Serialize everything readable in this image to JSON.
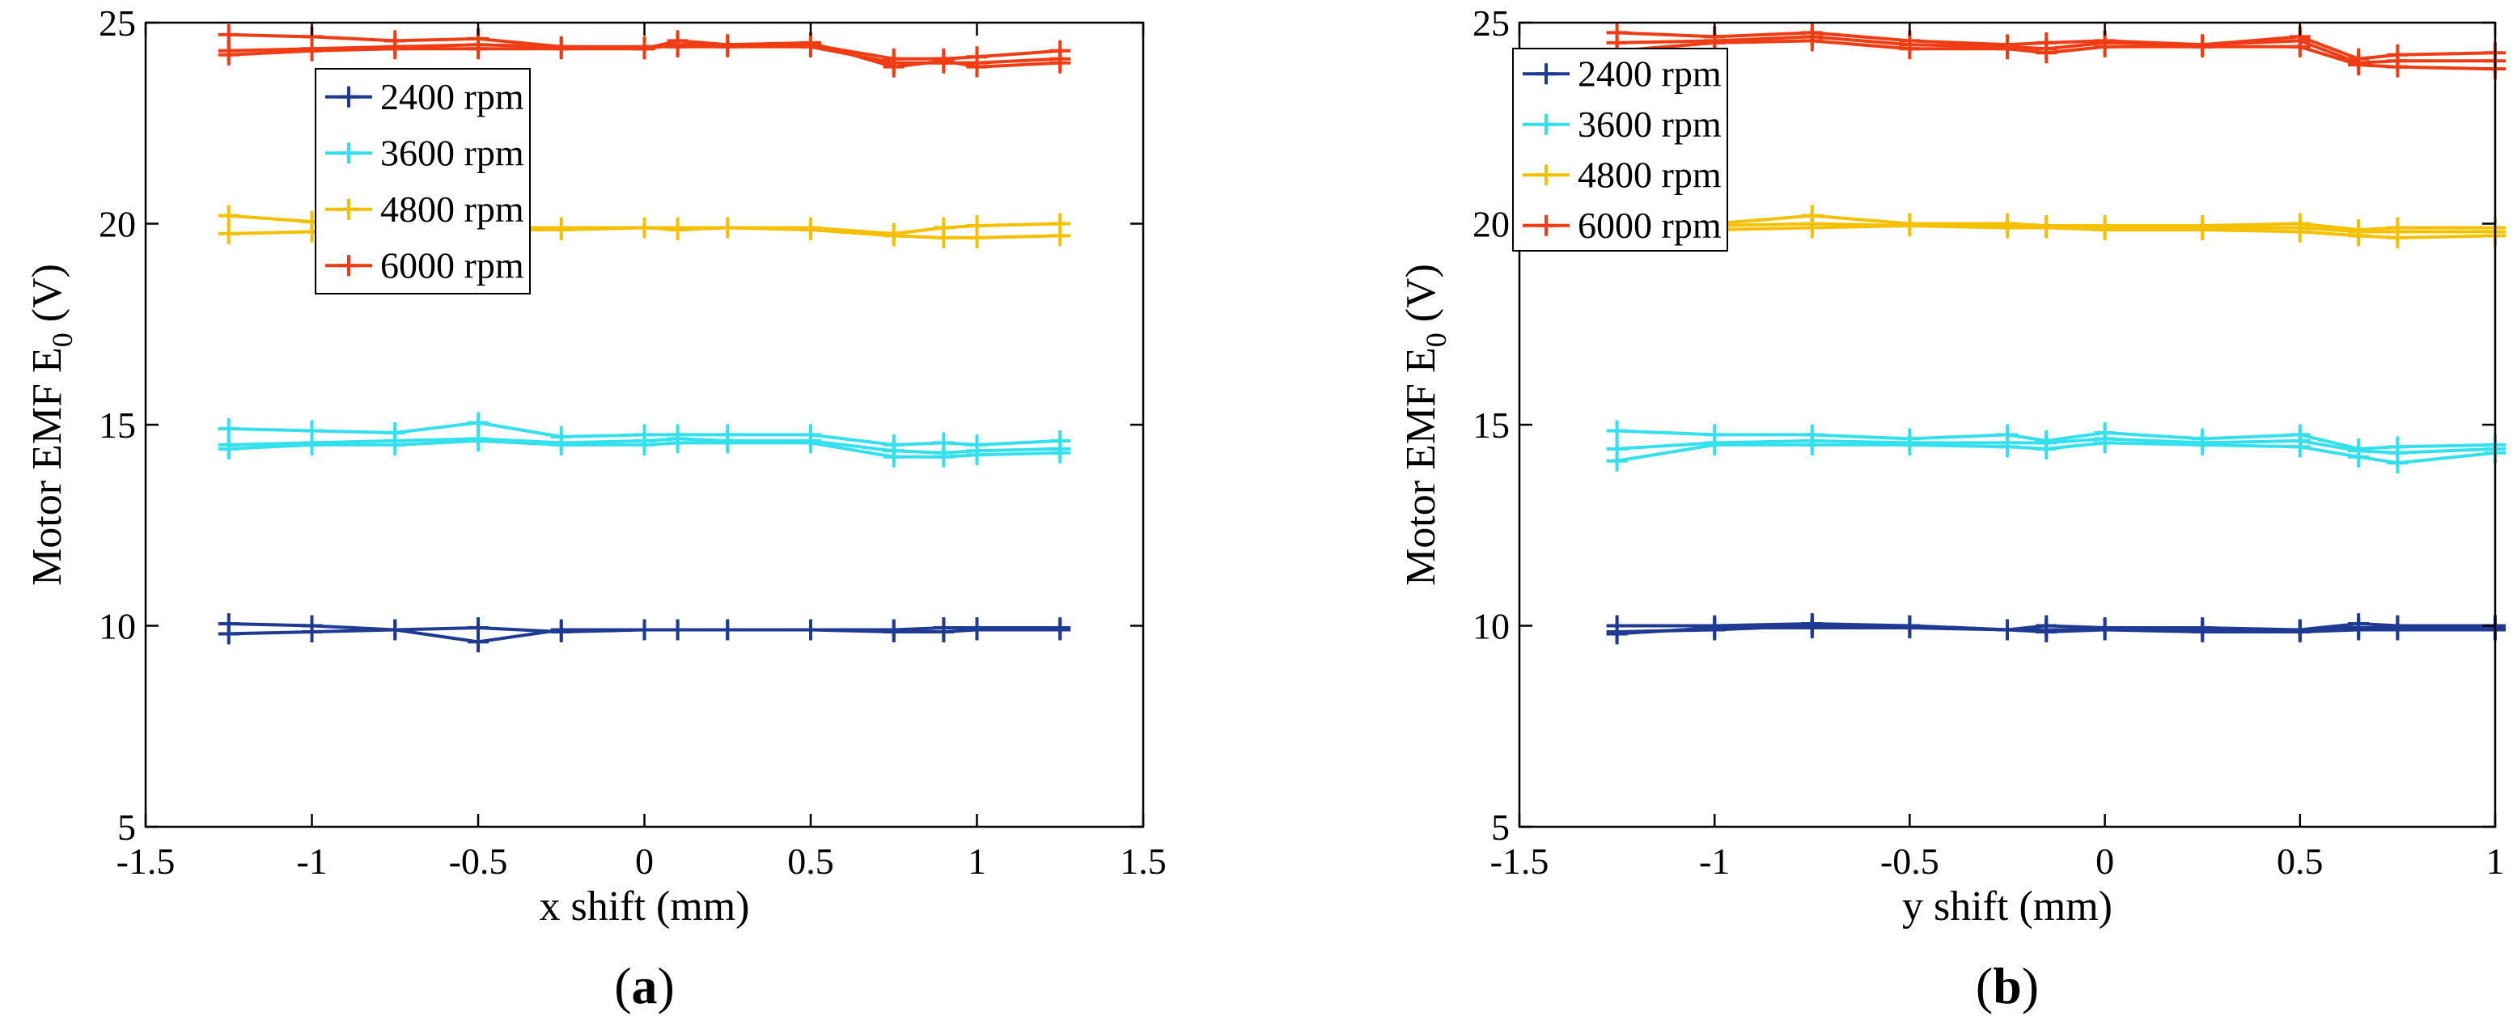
{
  "chart_data": [
    {
      "type": "line",
      "panel_label": "(a)",
      "panel_letter": "a",
      "xlabel": "x shift (mm)",
      "ylabel": "Motor EMF E",
      "ylabel_subscript": "0",
      "ylabel_suffix": " (V)",
      "xlim": [
        -1.5,
        1.5
      ],
      "ylim": [
        5,
        25
      ],
      "xticks": [
        -1.5,
        -1,
        -0.5,
        0,
        0.5,
        1,
        1.5
      ],
      "xtick_labels": [
        "-1.5",
        "-1",
        "-0.5",
        "0",
        "0.5",
        "1",
        "1.5"
      ],
      "yticks": [
        5,
        10,
        15,
        20,
        25
      ],
      "ytick_labels": [
        "5",
        "10",
        "15",
        "20",
        "25"
      ],
      "legend_position": "top-left-inside",
      "x": [
        -1.25,
        -1,
        -0.75,
        -0.5,
        -0.25,
        0,
        0.1,
        0.25,
        0.5,
        0.75,
        0.9,
        1,
        1.25
      ],
      "series": [
        {
          "name": "2400 rpm",
          "color": "#1f3a93",
          "traces": [
            [
              10.05,
              10.0,
              9.9,
              9.6,
              9.9,
              9.9,
              9.9,
              9.9,
              9.9,
              9.9,
              9.95,
              9.95,
              9.95
            ],
            [
              9.8,
              9.85,
              9.9,
              9.95,
              9.85,
              9.9,
              9.9,
              9.9,
              9.9,
              9.85,
              9.85,
              9.9,
              9.9
            ]
          ]
        },
        {
          "name": "3600 rpm",
          "color": "#33e0ee",
          "traces": [
            [
              14.9,
              14.85,
              14.8,
              15.05,
              14.7,
              14.75,
              14.75,
              14.75,
              14.75,
              14.5,
              14.55,
              14.5,
              14.6
            ],
            [
              14.5,
              14.55,
              14.6,
              14.65,
              14.55,
              14.6,
              14.65,
              14.6,
              14.6,
              14.35,
              14.3,
              14.35,
              14.4
            ],
            [
              14.4,
              14.5,
              14.5,
              14.6,
              14.5,
              14.5,
              14.55,
              14.55,
              14.55,
              14.2,
              14.2,
              14.25,
              14.3
            ]
          ]
        },
        {
          "name": "4800 rpm",
          "color": "#f5c000",
          "traces": [
            [
              20.2,
              20.05,
              19.95,
              19.9,
              19.9,
              19.9,
              19.9,
              19.9,
              19.9,
              19.75,
              19.9,
              19.95,
              20.0
            ],
            [
              19.75,
              19.8,
              19.85,
              19.85,
              19.85,
              19.9,
              19.85,
              19.9,
              19.85,
              19.7,
              19.65,
              19.65,
              19.7
            ]
          ]
        },
        {
          "name": "6000 rpm",
          "color": "#f03c14",
          "traces": [
            [
              24.7,
              24.65,
              24.55,
              24.6,
              24.4,
              24.35,
              24.55,
              24.45,
              24.45,
              24.1,
              24.1,
              24.15,
              24.3
            ],
            [
              24.3,
              24.35,
              24.4,
              24.45,
              24.4,
              24.4,
              24.4,
              24.4,
              24.4,
              24.0,
              24.0,
              24.0,
              24.1
            ],
            [
              24.2,
              24.3,
              24.35,
              24.35,
              24.35,
              24.35,
              24.45,
              24.45,
              24.5,
              23.9,
              24.05,
              23.9,
              24.0
            ]
          ]
        }
      ]
    },
    {
      "type": "line",
      "panel_label": "(b)",
      "panel_letter": "b",
      "xlabel": "y shift (mm)",
      "ylabel": "Motor EMF E",
      "ylabel_subscript": "0",
      "ylabel_suffix": " (V)",
      "xlim": [
        -1.5,
        1
      ],
      "ylim": [
        5,
        25
      ],
      "xticks": [
        -1.5,
        -1,
        -0.5,
        0,
        0.5,
        1
      ],
      "xtick_labels": [
        "-1.5",
        "-1",
        "-0.5",
        "0",
        "0.5",
        "1"
      ],
      "yticks": [
        5,
        10,
        15,
        20,
        25
      ],
      "ytick_labels": [
        "5",
        "10",
        "15",
        "20",
        "25"
      ],
      "legend_position": "top-left-inside",
      "x": [
        -1.25,
        -1,
        -0.75,
        -0.5,
        -0.25,
        -0.15,
        0,
        0.25,
        0.5,
        0.65,
        0.75,
        1
      ],
      "series": [
        {
          "name": "2400 rpm",
          "color": "#1f3a93",
          "traces": [
            [
              10.0,
              10.0,
              10.05,
              10.0,
              9.9,
              10.0,
              9.95,
              9.95,
              9.9,
              10.05,
              10.0,
              10.0
            ],
            [
              9.85,
              9.9,
              10.0,
              10.0,
              9.9,
              9.85,
              9.9,
              9.9,
              9.9,
              9.95,
              9.95,
              9.95
            ],
            [
              9.8,
              9.95,
              9.95,
              9.95,
              9.9,
              9.9,
              9.9,
              9.85,
              9.85,
              9.9,
              9.9,
              9.9
            ]
          ]
        },
        {
          "name": "3600 rpm",
          "color": "#33e0ee",
          "traces": [
            [
              14.85,
              14.75,
              14.75,
              14.65,
              14.75,
              14.6,
              14.8,
              14.65,
              14.75,
              14.4,
              14.45,
              14.5
            ],
            [
              14.4,
              14.55,
              14.6,
              14.55,
              14.55,
              14.55,
              14.65,
              14.55,
              14.6,
              14.35,
              14.3,
              14.4
            ],
            [
              14.1,
              14.5,
              14.5,
              14.5,
              14.45,
              14.4,
              14.55,
              14.5,
              14.45,
              14.2,
              14.05,
              14.3
            ]
          ]
        },
        {
          "name": "4800 rpm",
          "color": "#f5c000",
          "traces": [
            [
              20.0,
              20.0,
              20.2,
              20.0,
              20.0,
              19.95,
              19.95,
              19.95,
              20.0,
              19.85,
              19.9,
              19.9
            ],
            [
              19.85,
              19.95,
              20.0,
              19.95,
              19.95,
              19.9,
              19.9,
              19.9,
              19.9,
              19.8,
              19.8,
              19.8
            ],
            [
              19.8,
              19.85,
              19.9,
              19.95,
              19.9,
              19.9,
              19.85,
              19.85,
              19.8,
              19.7,
              19.65,
              19.7
            ]
          ]
        },
        {
          "name": "6000 rpm",
          "color": "#f03c14",
          "traces": [
            [
              24.75,
              24.65,
              24.75,
              24.55,
              24.45,
              24.5,
              24.55,
              24.45,
              24.65,
              24.1,
              24.2,
              24.25
            ],
            [
              24.5,
              24.55,
              24.65,
              24.45,
              24.4,
              24.35,
              24.5,
              24.45,
              24.55,
              24.0,
              24.05,
              24.05
            ],
            [
              24.3,
              24.5,
              24.55,
              24.35,
              24.35,
              24.25,
              24.4,
              24.4,
              24.4,
              23.95,
              23.9,
              23.85
            ]
          ]
        }
      ]
    }
  ]
}
